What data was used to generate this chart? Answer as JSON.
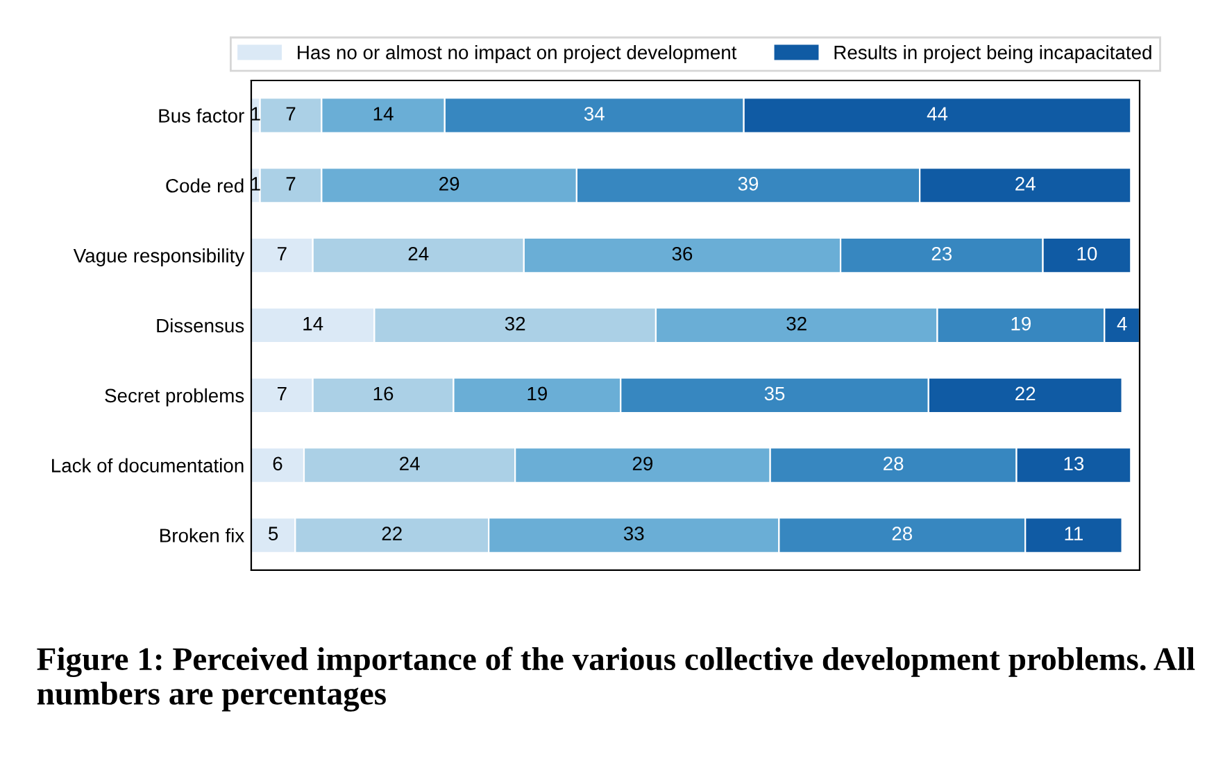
{
  "chart_data": {
    "type": "bar",
    "orientation": "horizontal",
    "stacked": true,
    "data_labels": true,
    "legend": "top",
    "tick_labels": "y",
    "grid": false,
    "categories": [
      "Bus factor",
      "Code red",
      "Vague responsibility",
      "Dissensus",
      "Secret problems",
      "Lack of documentation",
      "Broken fix"
    ],
    "xlim": [
      0,
      101
    ],
    "series": [
      {
        "name": "Has no or almost no impact on project development",
        "color": "#dbe9f6",
        "values": [
          1,
          1,
          7,
          14,
          7,
          6,
          5
        ]
      },
      {
        "color": "#abd0e6",
        "values": [
          7,
          7,
          24,
          32,
          16,
          24,
          22
        ]
      },
      {
        "color": "#6aaed6",
        "values": [
          14,
          29,
          36,
          32,
          19,
          29,
          33
        ]
      },
      {
        "color": "#3787c0",
        "values": [
          34,
          39,
          23,
          19,
          35,
          28,
          28
        ]
      },
      {
        "name": "Results in project being incapacitated",
        "color": "#105ba4",
        "values": [
          44,
          24,
          10,
          4,
          22,
          13,
          11
        ]
      }
    ],
    "annotations": [
      "Figure 1: Perceived importance of the various collective development problems. All numbers are percentages"
    ]
  }
}
